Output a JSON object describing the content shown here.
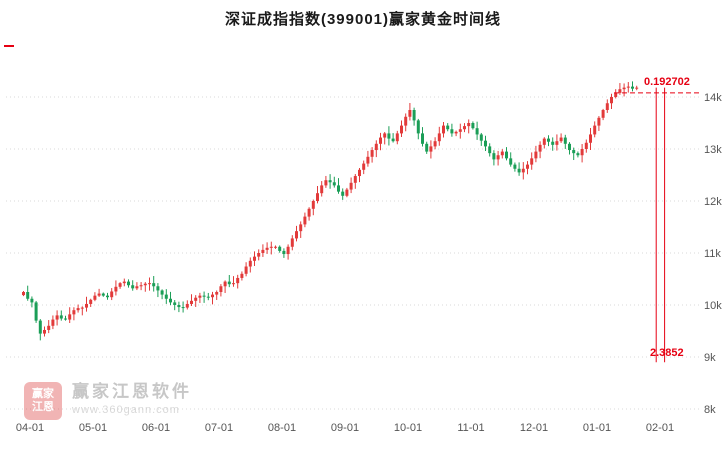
{
  "title": "深证成指指数(399001)赢家黄金时间线",
  "annotations": {
    "fib_top_label": "0.192702",
    "fib_bottom_label": "2.3852"
  },
  "watermark": {
    "logo_top": "赢家",
    "logo_bottom": "江恩",
    "brand": "赢家江恩软件",
    "url": "www.360gann.com"
  },
  "colors": {
    "up": "#e23a3a",
    "down": "#1b9e57",
    "annotation": "#e60012",
    "grid": "#d9d9d9",
    "axis_text": "#555555"
  },
  "chart_data": {
    "type": "candlestick",
    "title": "深证成指指数(399001)赢家黄金时间线",
    "x_ticks": [
      "04-01",
      "05-01",
      "06-01",
      "07-01",
      "08-01",
      "09-01",
      "10-01",
      "11-01",
      "12-01",
      "01-01",
      "02-01"
    ],
    "y_ticks": [
      "14k",
      "13k",
      "12k",
      "11k",
      "10k",
      "9k",
      "8k"
    ],
    "ylim": [
      8,
      14.9
    ],
    "grid": "horizontal-dotted",
    "legend": "none",
    "candles_per_month": 15,
    "closes": [
      10.25,
      10.12,
      10.05,
      9.7,
      9.45,
      9.52,
      9.6,
      9.72,
      9.8,
      9.74,
      9.72,
      9.82,
      9.9,
      9.94,
      9.95,
      10.02,
      10.1,
      10.18,
      10.22,
      10.18,
      10.15,
      10.26,
      10.35,
      10.42,
      10.45,
      10.38,
      10.32,
      10.36,
      10.38,
      10.41,
      10.42,
      10.36,
      10.28,
      10.2,
      10.12,
      10.05,
      10.0,
      9.96,
      9.95,
      10.02,
      10.08,
      10.14,
      10.18,
      10.16,
      10.15,
      10.2,
      10.25,
      10.36,
      10.45,
      10.4,
      10.42,
      10.52,
      10.6,
      10.74,
      10.85,
      10.93,
      11.0,
      11.06,
      11.1,
      11.12,
      11.12,
      11.04,
      10.98,
      11.12,
      11.28,
      11.42,
      11.55,
      11.7,
      11.85,
      12.0,
      12.15,
      12.3,
      12.4,
      12.36,
      12.3,
      12.18,
      12.1,
      12.22,
      12.35,
      12.48,
      12.6,
      12.72,
      12.85,
      12.98,
      13.1,
      13.22,
      13.3,
      13.2,
      13.15,
      13.3,
      13.45,
      13.62,
      13.75,
      13.55,
      13.3,
      13.1,
      12.95,
      13.05,
      13.15,
      13.3,
      13.45,
      13.38,
      13.3,
      13.33,
      13.38,
      13.44,
      13.5,
      13.4,
      13.28,
      13.16,
      13.05,
      12.92,
      12.8,
      12.88,
      12.95,
      12.82,
      12.7,
      12.62,
      12.55,
      12.62,
      12.7,
      12.82,
      12.95,
      13.08,
      13.2,
      13.14,
      13.08,
      13.15,
      13.22,
      13.1,
      12.98,
      12.92,
      12.88,
      13.0,
      13.12,
      13.28,
      13.45,
      13.6,
      13.75,
      13.88,
      14.0,
      14.08,
      14.15,
      14.18,
      14.2,
      14.16,
      14.18
    ],
    "dashed_target_value": 14.08,
    "vlines": {
      "indices": [
        151,
        153
      ],
      "from_value": 14.18,
      "to_value": 8.9
    }
  }
}
